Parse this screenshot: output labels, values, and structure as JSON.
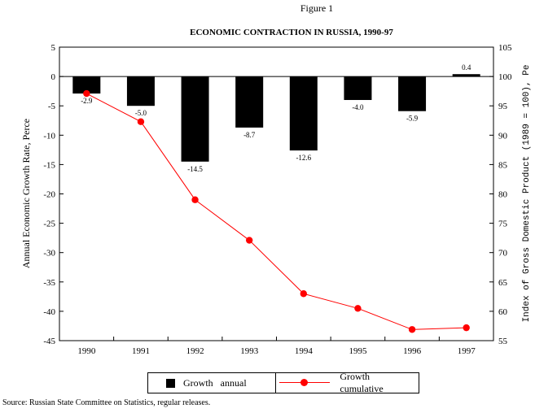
{
  "figure_label": "Figure 1",
  "source_note": "Source: Russian State Committee on Statistics, regular releases.",
  "chart_data": {
    "type": "bar",
    "title": "ECONOMIC CONTRACTION IN RUSSIA, 1990-97",
    "categories": [
      "1990",
      "1991",
      "1992",
      "1993",
      "1994",
      "1995",
      "1996",
      "1997"
    ],
    "ylabel": "Annual   Economic   Growth   Rate,   Perce",
    "y2label": "Index  of  Gross  Domestic  Product  (1989  =  100),  Pe",
    "ylim": [
      -45,
      5
    ],
    "y2lim": [
      55,
      105
    ],
    "yticks": [
      "5",
      "0",
      "-5",
      "-10",
      "-15",
      "-20",
      "-25",
      "-30",
      "-35",
      "-40",
      "-45"
    ],
    "y2ticks": [
      "105",
      "100",
      "95",
      "90",
      "85",
      "80",
      "75",
      "70",
      "65",
      "60",
      "55"
    ],
    "legend_position": "bottom",
    "series": [
      {
        "name": "Growth   annual",
        "type": "bar",
        "axis": "left",
        "color": "#000000",
        "values": [
          -2.9,
          -5.0,
          -14.5,
          -8.7,
          -12.6,
          -4.0,
          -5.9,
          0.4
        ],
        "labels": [
          "-2.9",
          "-5.0",
          "-14.5",
          "-8.7",
          "-12.6",
          "-4.0",
          "-5.9",
          "0.4"
        ]
      },
      {
        "name": "Growth   cumulative",
        "type": "line",
        "axis": "right",
        "color": "#ff0000",
        "values": [
          97.1,
          92.3,
          79.0,
          72.1,
          63.0,
          60.5,
          56.9,
          57.2
        ]
      }
    ]
  }
}
